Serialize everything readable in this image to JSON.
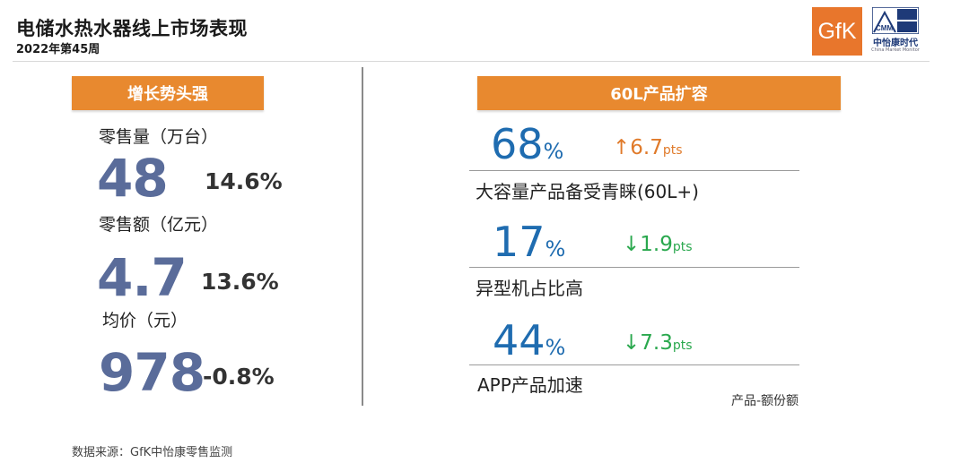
{
  "header": {
    "title": "电储水热水器线上市场表现",
    "subtitle": "2022年第45周",
    "logo_gfk": "GfK",
    "logo_cmm": "CMM",
    "logo_cmm_cn": "中怡康时代",
    "logo_cmm_en": "China Market Monitor"
  },
  "left": {
    "banner": "增长势头强",
    "metrics": [
      {
        "label": "零售量（万台）",
        "value": "48",
        "change": "14.6%"
      },
      {
        "label": "零售额（亿元）",
        "value": "4.7",
        "change": "13.6%"
      },
      {
        "label": "均价（元）",
        "value": "978",
        "change": "-0.8%"
      }
    ]
  },
  "right": {
    "banner": "60L产品扩容",
    "kpis": [
      {
        "value": "68",
        "unit": "%",
        "arrow": "↑",
        "change": "6.7",
        "change_unit": "pts",
        "direction": "up",
        "label": "大容量产品备受青睐(60L+)"
      },
      {
        "value": "17",
        "unit": "%",
        "arrow": "↓",
        "change": "1.9",
        "change_unit": "pts",
        "direction": "down",
        "label": "异型机占比高"
      },
      {
        "value": "44",
        "unit": "%",
        "arrow": "↓",
        "change": "7.3",
        "change_unit": "pts",
        "direction": "down",
        "label": "APP产品加速"
      }
    ],
    "note": "产品-额份额"
  },
  "footer": {
    "source": "数据来源：GfK中怡康零售监测"
  },
  "colors": {
    "banner": "#e8892f",
    "big_number": "#5a6c9a",
    "kpi_blue": "#1f6cb0",
    "up": "#e07a2a",
    "down": "#2aa84e"
  }
}
